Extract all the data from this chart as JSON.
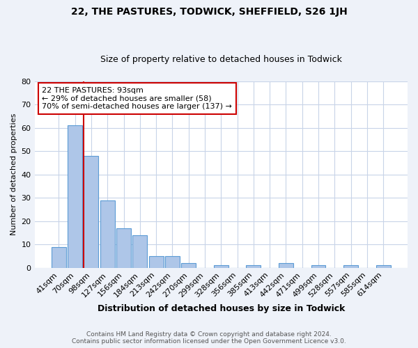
{
  "title": "22, THE PASTURES, TODWICK, SHEFFIELD, S26 1JH",
  "subtitle": "Size of property relative to detached houses in Todwick",
  "xlabel": "Distribution of detached houses by size in Todwick",
  "ylabel": "Number of detached properties",
  "categories": [
    "41sqm",
    "70sqm",
    "98sqm",
    "127sqm",
    "156sqm",
    "184sqm",
    "213sqm",
    "242sqm",
    "270sqm",
    "299sqm",
    "328sqm",
    "356sqm",
    "385sqm",
    "413sqm",
    "442sqm",
    "471sqm",
    "499sqm",
    "528sqm",
    "557sqm",
    "585sqm",
    "614sqm"
  ],
  "values": [
    9,
    61,
    48,
    29,
    17,
    14,
    5,
    5,
    2,
    0,
    1,
    0,
    1,
    0,
    2,
    0,
    1,
    0,
    1,
    0,
    1
  ],
  "bar_color": "#aec6e8",
  "bar_edgecolor": "#5b9bd5",
  "vline_x": 1.55,
  "annotation_text": "22 THE PASTURES: 93sqm\n← 29% of detached houses are smaller (58)\n70% of semi-detached houses are larger (137) →",
  "annotation_box_color": "#ffffff",
  "annotation_box_edgecolor": "#cc0000",
  "vline_color": "#cc0000",
  "ylim": [
    0,
    80
  ],
  "yticks": [
    0,
    10,
    20,
    30,
    40,
    50,
    60,
    70,
    80
  ],
  "footer_line1": "Contains HM Land Registry data © Crown copyright and database right 2024.",
  "footer_line2": "Contains public sector information licensed under the Open Government Licence v3.0.",
  "bg_color": "#eef2f9",
  "plot_bg_color": "#ffffff",
  "grid_color": "#c8d4e8",
  "title_fontsize": 10,
  "subtitle_fontsize": 9,
  "ylabel_fontsize": 8,
  "xlabel_fontsize": 9,
  "tick_fontsize": 8,
  "annot_fontsize": 8,
  "footer_fontsize": 6.5
}
